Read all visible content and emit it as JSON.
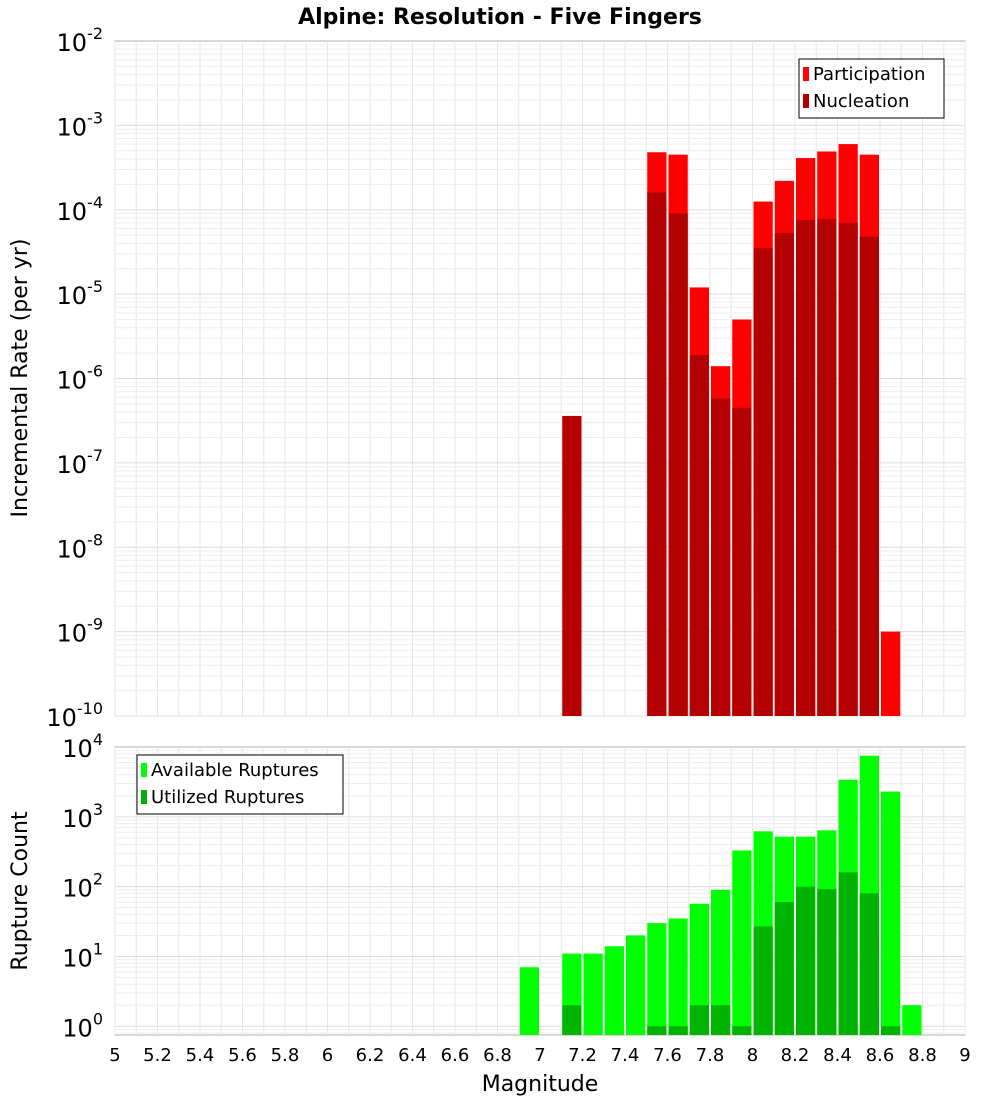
{
  "title": "Alpine: Resolution - Five Fingers",
  "chart_data": [
    {
      "type": "bar",
      "panel": "top",
      "ylabel": "Incremental Rate (per yr)",
      "yscale": "log",
      "ylim": [
        1e-10,
        0.01
      ],
      "yticks": [
        {
          "exp": "-10"
        },
        {
          "exp": "-9"
        },
        {
          "exp": "-8"
        },
        {
          "exp": "-7"
        },
        {
          "exp": "-6"
        },
        {
          "exp": "-5"
        },
        {
          "exp": "-4"
        },
        {
          "exp": "-3"
        },
        {
          "exp": "-2"
        }
      ],
      "ytick_base": "10",
      "xlim": [
        5,
        9
      ],
      "grid": true,
      "legend_position": "top-right",
      "series": [
        {
          "name": "Participation",
          "color": "#ff0000",
          "x": [
            7.55,
            7.65,
            7.75,
            7.85,
            7.95,
            8.05,
            8.15,
            8.25,
            8.35,
            8.45,
            8.55,
            8.65
          ],
          "values": [
            0.00048,
            0.00045,
            1.2e-05,
            1.4e-06,
            5e-06,
            0.000125,
            0.00022,
            0.00041,
            0.00049,
            0.0006,
            0.00045,
            1e-09
          ]
        },
        {
          "name": "Nucleation",
          "color": "#b30000",
          "x": [
            7.15,
            7.55,
            7.65,
            7.75,
            7.85,
            7.95,
            8.05,
            8.15,
            8.25,
            8.35,
            8.45,
            8.55
          ],
          "values": [
            3.6e-07,
            0.00016,
            9e-05,
            1.9e-06,
            5.8e-07,
            4.5e-07,
            3.5e-05,
            5.3e-05,
            7.6e-05,
            7.8e-05,
            7e-05,
            4.8e-05
          ]
        }
      ]
    },
    {
      "type": "bar",
      "panel": "bottom",
      "ylabel": "Rupture Count",
      "xlabel": "Magnitude",
      "yscale": "log",
      "ylim": [
        0.75,
        10000
      ],
      "yticks": [
        {
          "exp": "0"
        },
        {
          "exp": "1"
        },
        {
          "exp": "2"
        },
        {
          "exp": "3"
        },
        {
          "exp": "4"
        }
      ],
      "ytick_base": "10",
      "xlim": [
        5,
        9
      ],
      "xticks": [
        "5",
        "5.2",
        "5.4",
        "5.6",
        "5.8",
        "6",
        "6.2",
        "6.4",
        "6.6",
        "6.8",
        "7",
        "7.2",
        "7.4",
        "7.6",
        "7.8",
        "8",
        "8.2",
        "8.4",
        "8.6",
        "8.8",
        "9"
      ],
      "grid": true,
      "legend_position": "top-left",
      "series": [
        {
          "name": "Available Ruptures",
          "color": "#00ff00",
          "x": [
            6.95,
            7.15,
            7.25,
            7.35,
            7.45,
            7.55,
            7.65,
            7.75,
            7.85,
            7.95,
            8.05,
            8.15,
            8.25,
            8.35,
            8.45,
            8.55,
            8.65,
            8.75
          ],
          "values": [
            7,
            11,
            11,
            14,
            20,
            30,
            35,
            57,
            90,
            330,
            620,
            520,
            520,
            640,
            3400,
            7500,
            2300,
            2
          ]
        },
        {
          "name": "Utilized Ruptures",
          "color": "#00b300",
          "x": [
            7.15,
            7.55,
            7.65,
            7.75,
            7.85,
            7.95,
            8.05,
            8.15,
            8.25,
            8.35,
            8.45,
            8.55,
            8.65
          ],
          "values": [
            2,
            1,
            1,
            2,
            2,
            1,
            27,
            60,
            100,
            92,
            160,
            80,
            1
          ]
        }
      ]
    }
  ]
}
